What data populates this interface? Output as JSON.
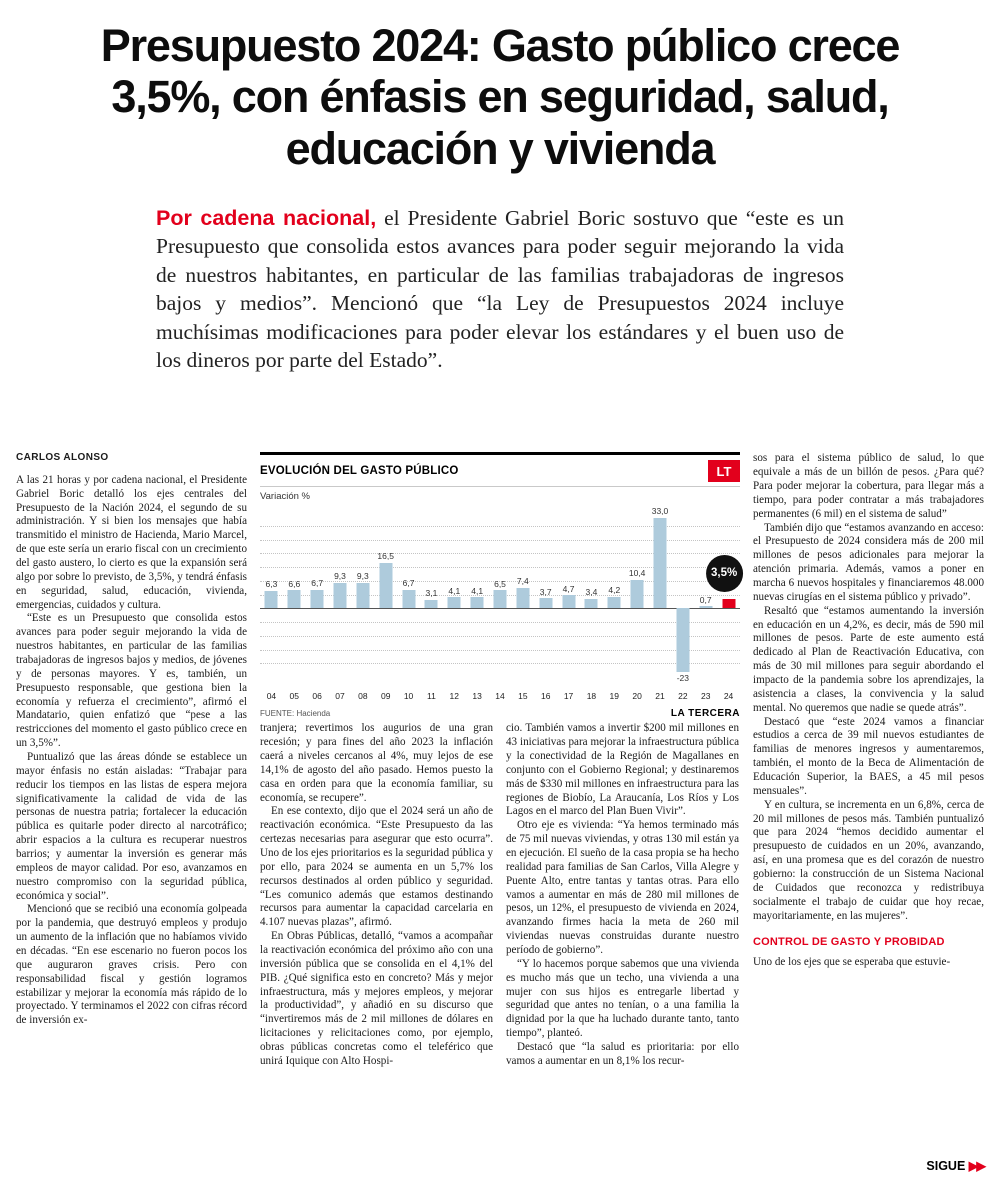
{
  "masthead": {
    "lines": [
      "Presupuesto 2024: Gasto público crece",
      "3,5%, con énfasis en seguridad, salud,",
      "educación y vivienda"
    ]
  },
  "lede": {
    "kicker": "Por cadena nacional,",
    "text": " el Presidente Gabriel Boric sostuvo que “este es un Presupuesto que consolida estos avances para poder seguir mejorando la vida de nuestros habitantes, en particular de las familias trabajadoras de ingresos bajos y medios”. Mencionó que “la Ley de Presupuestos 2024 incluye muchísimas modificaciones para poder elevar los estándares y el buen uso de los dineros por parte del Estado”."
  },
  "byline": "CARLOS ALONSO",
  "columns": {
    "col1": [
      "A las 21 horas y por cadena nacional, el Presidente Gabriel Boric detalló los ejes centrales del Presupuesto de la Nación 2024, el segundo de su administración. Y si bien los mensajes que había transmitido el ministro de Hacienda, Mario Marcel, de que este sería un erario fiscal con un crecimiento del gasto austero, lo cierto es que la expansión será algo por sobre lo previsto, de 3,5%, y tendrá énfasis en seguridad, salud, educación, vivienda, emergencias, cuidados y cultura.",
      "“Este es un Presupuesto que consolida estos avances para poder seguir mejorando la vida de nuestros habitantes, en particular de las familias trabajadoras de ingresos bajos y medios, de jóvenes y de personas mayores. Y es, también, un Presupuesto responsable, que gestiona bien la economía y refuerza el crecimiento”, afirmó el Mandatario, quien enfatizó que “pese a las restricciones del momento el gasto público crece en un 3,5%”.",
      "Puntualizó que las áreas dónde se establece un mayor énfasis no están aisladas: “Trabajar para reducir los tiempos en las listas de espera mejora significativamente la calidad de vida de las personas de nuestra patria; fortalecer la educación pública es quitarle poder directo al narcotráfico; abrir espacios a la cultura es recuperar nuestros barrios; y aumentar la inversión es generar más empleos de mayor calidad. Por eso, avanzamos en nuestro compromiso con la seguridad pública, económica y social”.",
      "Mencionó que se recibió una economía golpeada por la pandemia, que destruyó empleos y produjo un aumento de la inflación que no habíamos vivido en décadas. “En ese escenario no fueron pocos los que auguraron graves crisis. Pero con responsabilidad fiscal y gestión logramos estabilizar y mejorar la economía más rápido de lo proyectado. Y terminamos el 2022 con cifras récord de inversión ex-"
    ],
    "col2": [
      "tranjera; revertimos los augurios de una gran recesión; y para fines del año 2023 la inflación caerá a niveles cercanos al 4%, muy lejos de ese 14,1% de agosto del año pasado. Hemos puesto la casa en orden para que la economía familiar, su economía, se recupere”.",
      "En ese contexto, dijo que el 2024 será un año de reactivación económica. “Este Presupuesto da las certezas necesarias para asegurar que esto ocurra”. Uno de los ejes prioritarios es la seguridad pública y por ello, para 2024 se aumenta en un 5,7% los recursos destinados al orden público y seguridad. “Les comunico además que estamos destinando recursos para aumentar la capacidad carcelaria en 4.107 nuevas plazas”, afirmó.",
      "En Obras Públicas, detalló, “vamos a acompañar la reactivación económica del próximo año con una inversión pública que se consolida en el 4,1% del PIB. ¿Qué significa esto en concreto? Más y mejor infraestructura, más y mejores empleos, y mejorar la productividad”, y añadió en su discurso que “invertiremos más de 2 mil millones de dólares en licitaciones y relicitaciones como, por ejemplo, obras públicas concretas como el teleférico que unirá Iquique con Alto Hospi-"
    ],
    "col3": [
      "cio. También vamos a invertir $200 mil millones en 43 iniciativas para mejorar la infraestructura pública y la conectividad de la Región de Magallanes en conjunto con el Gobierno Regional; y destinaremos más de $330 mil millones en infraestructura para las regiones de Biobío, La Araucanía, Los Ríos y Los Lagos en el marco del Plan Buen Vivir”.",
      "Otro eje es vivienda: “Ya hemos terminado más de 75 mil nuevas viviendas, y otras 130 mil están ya en ejecución. El sueño de la casa propia se ha hecho realidad para familias de San Carlos, Villa Alegre y Puente Alto, entre tantas y tantas otras. Para ello vamos a aumentar en más de 280 mil millones de pesos, un 12%, el presupuesto de vivienda en 2024, avanzando firmes hacia la meta de 260 mil viviendas nuevas construidas durante nuestro período de gobierno”.",
      "“Y lo hacemos porque sabemos que una vivienda es mucho más que un techo, una vivienda a una mujer con sus hijos es entregarle libertad y seguridad que antes no tenían, o a una familia la dignidad por la que ha luchado durante tanto, tanto tiempo”, planteó.",
      "Destacó que “la salud es prioritaria: por ello vamos a aumentar en un 8,1% los recur-"
    ],
    "col4": [
      "sos para el sistema público de salud, lo que equivale a más de un billón de pesos. ¿Para qué? Para poder mejorar la cobertura, para llegar más a tiempo, para poder contratar a más trabajadores permanentes (6 mil) en el sistema de salud”",
      "También dijo que “estamos avanzando en acceso: el Presupuesto de 2024 considera más de 200 mil millones de pesos adicionales para mejorar la atención primaria. Además, vamos a poner en marcha 6 nuevos hospitales y financiaremos 48.000 nuevas cirugías en el sistema público y privado”.",
      "Resaltó que “estamos aumentando la inversión en educación en un 4,2%, es decir, más de 590 mil millones de pesos. Parte de este aumento está dedicado al Plan de Reactivación Educativa, con más de 30 mil millones para seguir abordando el impacto de la pandemia sobre los aprendizajes, la asistencia a clases, la convivencia y la salud mental. No queremos que nadie se quede atrás”.",
      "Destacó que “este 2024 vamos a financiar estudios a cerca de 39 mil nuevos estudiantes de familias de menores ingresos y aumentaremos, también, el monto de la Beca de Alimentación de Educación Superior, la BAES, a 45 mil pesos mensuales”.",
      "Y en cultura, se incrementa en un 6,8%, cerca de 20 mil millones de pesos más. También puntualizó que para 2024 “hemos decidido aumentar el presupuesto de cuidados en un 20%, avanzando, así, en una promesa que es del corazón de nuestro gobierno: la construcción de un Sistema Nacional de Cuidados que reconozca y redistribuya socialmente el trabajo de cuidar que hoy recae, mayoritariamente, en las mujeres”."
    ],
    "col4_subhead": "CONTROL DE GASTO Y PROBIDAD",
    "col4_tail": [
      "Uno de los ejes que se esperaba que estuvie-"
    ]
  },
  "chart_data": {
    "type": "bar",
    "title": "EVOLUCIÓN DEL GASTO PÚBLICO",
    "ylabel": "Variación %",
    "categories": [
      "04",
      "05",
      "06",
      "07",
      "08",
      "09",
      "10",
      "11",
      "12",
      "13",
      "14",
      "15",
      "16",
      "17",
      "18",
      "19",
      "20",
      "21",
      "22",
      "23",
      "24"
    ],
    "values": [
      6.3,
      6.6,
      6.7,
      9.3,
      9.3,
      16.5,
      6.7,
      3.1,
      4.1,
      4.1,
      6.5,
      7.4,
      3.7,
      4.7,
      3.4,
      4.2,
      10.4,
      33.0,
      -23,
      0.7,
      3.5
    ],
    "labels": [
      "6,3",
      "6,6",
      "6,7",
      "9,3",
      "9,3",
      "16,5",
      "6,7",
      "3,1",
      "4,1",
      "4,1",
      "6,5",
      "7,4",
      "3,7",
      "4,7",
      "3,4",
      "4,2",
      "10,4",
      "33,0",
      "-23",
      "0,7",
      ""
    ],
    "highlight_index": 20,
    "highlight_badge": "3,5%",
    "bar_color": "#aecbdc",
    "highlight_color": "#e2001c",
    "grid": true,
    "ylim": [
      -23,
      35
    ],
    "brand": "LT",
    "source": "FUENTE: Hacienda",
    "credit": "LA TERCERA"
  },
  "footer": {
    "sigue_label": "SIGUE ",
    "sigue_arrows": "▶▶"
  }
}
